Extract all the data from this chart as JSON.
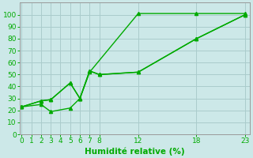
{
  "xlabel": "Humidité relative (%)",
  "background_color": "#cce8e8",
  "grid_color": "#aacccc",
  "line_color": "#00aa00",
  "lines": [
    {
      "x": [
        0,
        2,
        3,
        5,
        6,
        7,
        12,
        18,
        23
      ],
      "y": [
        23,
        25,
        19,
        22,
        30,
        52,
        101,
        101,
        101
      ]
    },
    {
      "x": [
        0,
        2,
        3,
        5,
        6,
        7,
        8,
        12,
        18,
        23
      ],
      "y": [
        23,
        28,
        29,
        43,
        30,
        53,
        50,
        52,
        80,
        100
      ]
    },
    {
      "x": [
        0,
        2,
        3,
        5,
        6,
        7,
        8,
        12,
        18,
        23
      ],
      "y": [
        23,
        28,
        29,
        43,
        30,
        53,
        50,
        52,
        80,
        100
      ]
    }
  ],
  "xlim": [
    -0.2,
    23.5
  ],
  "ylim": [
    0,
    110
  ],
  "xticks": [
    0,
    1,
    2,
    3,
    4,
    5,
    6,
    7,
    8,
    12,
    18,
    23
  ],
  "yticks": [
    0,
    10,
    20,
    30,
    40,
    50,
    60,
    70,
    80,
    90,
    100
  ],
  "tick_fontsize": 6.5,
  "xlabel_fontsize": 7.5
}
